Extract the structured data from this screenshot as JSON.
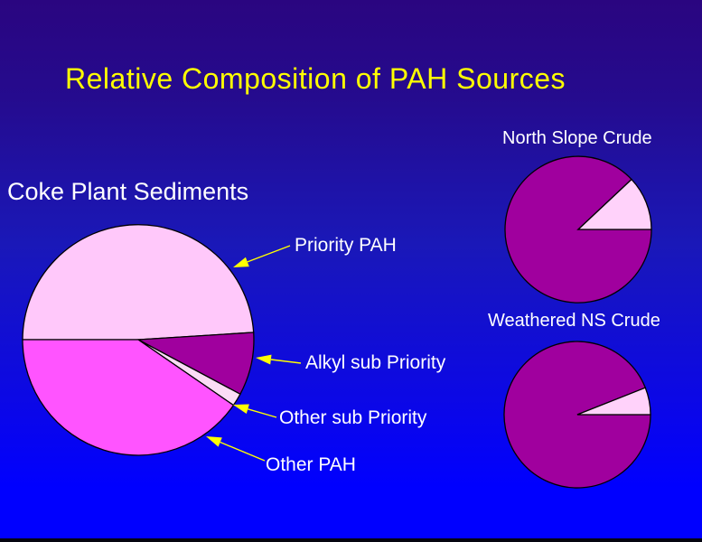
{
  "slide": {
    "title": "Relative Composition of PAH Sources",
    "colors": {
      "title": "#FFFF00",
      "text": "#FFFFFF",
      "arrow": "#FFFF00",
      "background_top": "#2A0580",
      "background_bottom": "#0000FF",
      "footer_bar": "#050510"
    }
  },
  "chart_data": [
    {
      "type": "pie",
      "title": "Coke Plant Sediments",
      "start_angle_deg": 180,
      "direction": "clockwise",
      "slices": [
        {
          "label": "Priority PAH",
          "value_pct": 49.0,
          "color": "#FFC8FA"
        },
        {
          "label": "Alkyl sub Priority",
          "value_pct": 8.8,
          "color": "#A0009E"
        },
        {
          "label": "Other sub Priority",
          "value_pct": 1.8,
          "color": "#FBDCF5"
        },
        {
          "label": "Other PAH",
          "value_pct": 40.4,
          "color": "#FF54FF"
        }
      ]
    },
    {
      "type": "pie",
      "title": "North Slope Crude",
      "start_angle_deg": 0,
      "direction": "clockwise",
      "slices": [
        {
          "label": "",
          "value_pct": 88,
          "color": "#A0009E"
        },
        {
          "label": "",
          "value_pct": 12,
          "color": "#FFD2FA"
        }
      ]
    },
    {
      "type": "pie",
      "title": "Weathered NS Crude",
      "start_angle_deg": 0,
      "direction": "clockwise",
      "slices": [
        {
          "label": "",
          "value_pct": 94,
          "color": "#A0009E"
        },
        {
          "label": "",
          "value_pct": 6,
          "color": "#FFD2FA"
        }
      ]
    }
  ],
  "annotations": {
    "priority_pah": "Priority PAH",
    "alkyl_sub_priority": "Alkyl sub Priority",
    "other_sub_priority": "Other sub Priority",
    "other_pah": "Other PAH"
  }
}
